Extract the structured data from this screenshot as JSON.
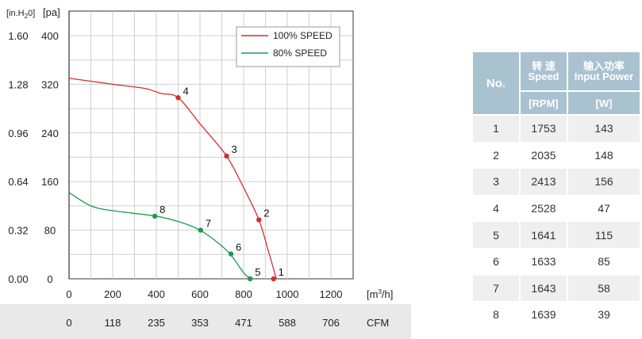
{
  "chart_data": {
    "type": "line",
    "left_axis_unit": "[in.H",
    "left_axis_unit_sub": "2",
    "left_axis_unit_tail": "0]",
    "pa_axis_unit": "[pa]",
    "x_unit_text": "[m",
    "x_unit_sup": "3",
    "x_unit_tail": "/h]",
    "cfm_unit": "CFM",
    "ylim": [
      0,
      400
    ],
    "xlim": [
      0,
      1300
    ],
    "y_ticks_pa": [
      "0",
      "80",
      "160",
      "240",
      "320",
      "400"
    ],
    "y_ticks_inh2o": [
      "0.00",
      "0.32",
      "0.64",
      "0.96",
      "1.28",
      "1.60"
    ],
    "x_ticks_m3h": [
      "0",
      "200",
      "400",
      "600",
      "800",
      "1000",
      "1200"
    ],
    "x_ticks_cfm": [
      "0",
      "118",
      "235",
      "353",
      "471",
      "588",
      "706"
    ],
    "grid": true,
    "legend_placement": "top-right",
    "series": [
      {
        "name": "100% SPEED",
        "color": "#d62d2d",
        "curve": [
          [
            0,
            330
          ],
          [
            200,
            320
          ],
          [
            350,
            313
          ],
          [
            420,
            305
          ],
          [
            500,
            298
          ],
          [
            600,
            255
          ],
          [
            720,
            203
          ],
          [
            800,
            150
          ],
          [
            870,
            97
          ],
          [
            910,
            50
          ],
          [
            950,
            0
          ]
        ],
        "points": [
          {
            "label": "1",
            "x": 937,
            "y": 0
          },
          {
            "label": "2",
            "x": 870,
            "y": 97
          },
          {
            "label": "3",
            "x": 722,
            "y": 202
          },
          {
            "label": "4",
            "x": 500,
            "y": 298
          }
        ]
      },
      {
        "name": "80%  SPEED",
        "color": "#1e9b4e",
        "curve": [
          [
            0,
            142
          ],
          [
            100,
            120
          ],
          [
            200,
            112
          ],
          [
            400,
            103
          ],
          [
            520,
            92
          ],
          [
            600,
            80
          ],
          [
            680,
            60
          ],
          [
            740,
            40
          ],
          [
            800,
            10
          ],
          [
            830,
            0
          ]
        ],
        "points": [
          {
            "label": "5",
            "x": 830,
            "y": 0
          },
          {
            "label": "6",
            "x": 742,
            "y": 41
          },
          {
            "label": "7",
            "x": 603,
            "y": 80
          },
          {
            "label": "8",
            "x": 393,
            "y": 103
          }
        ]
      }
    ]
  },
  "table": {
    "col_no": "No.",
    "col_speed_cn": "转 速",
    "col_speed_en": "Speed",
    "col_power_cn": "输入功率",
    "col_power_en": "Input Power",
    "unit_speed": "[RPM]",
    "unit_power": "[W]",
    "rows": [
      {
        "no": "1",
        "rpm": "1753",
        "watt": "143"
      },
      {
        "no": "2",
        "rpm": "2035",
        "watt": "148"
      },
      {
        "no": "3",
        "rpm": "2413",
        "watt": "156"
      },
      {
        "no": "4",
        "rpm": "2528",
        "watt": "47"
      },
      {
        "no": "5",
        "rpm": "1641",
        "watt": "115"
      },
      {
        "no": "6",
        "rpm": "1633",
        "watt": "85"
      },
      {
        "no": "7",
        "rpm": "1643",
        "watt": "58"
      },
      {
        "no": "8",
        "rpm": "1639",
        "watt": "39"
      }
    ]
  }
}
